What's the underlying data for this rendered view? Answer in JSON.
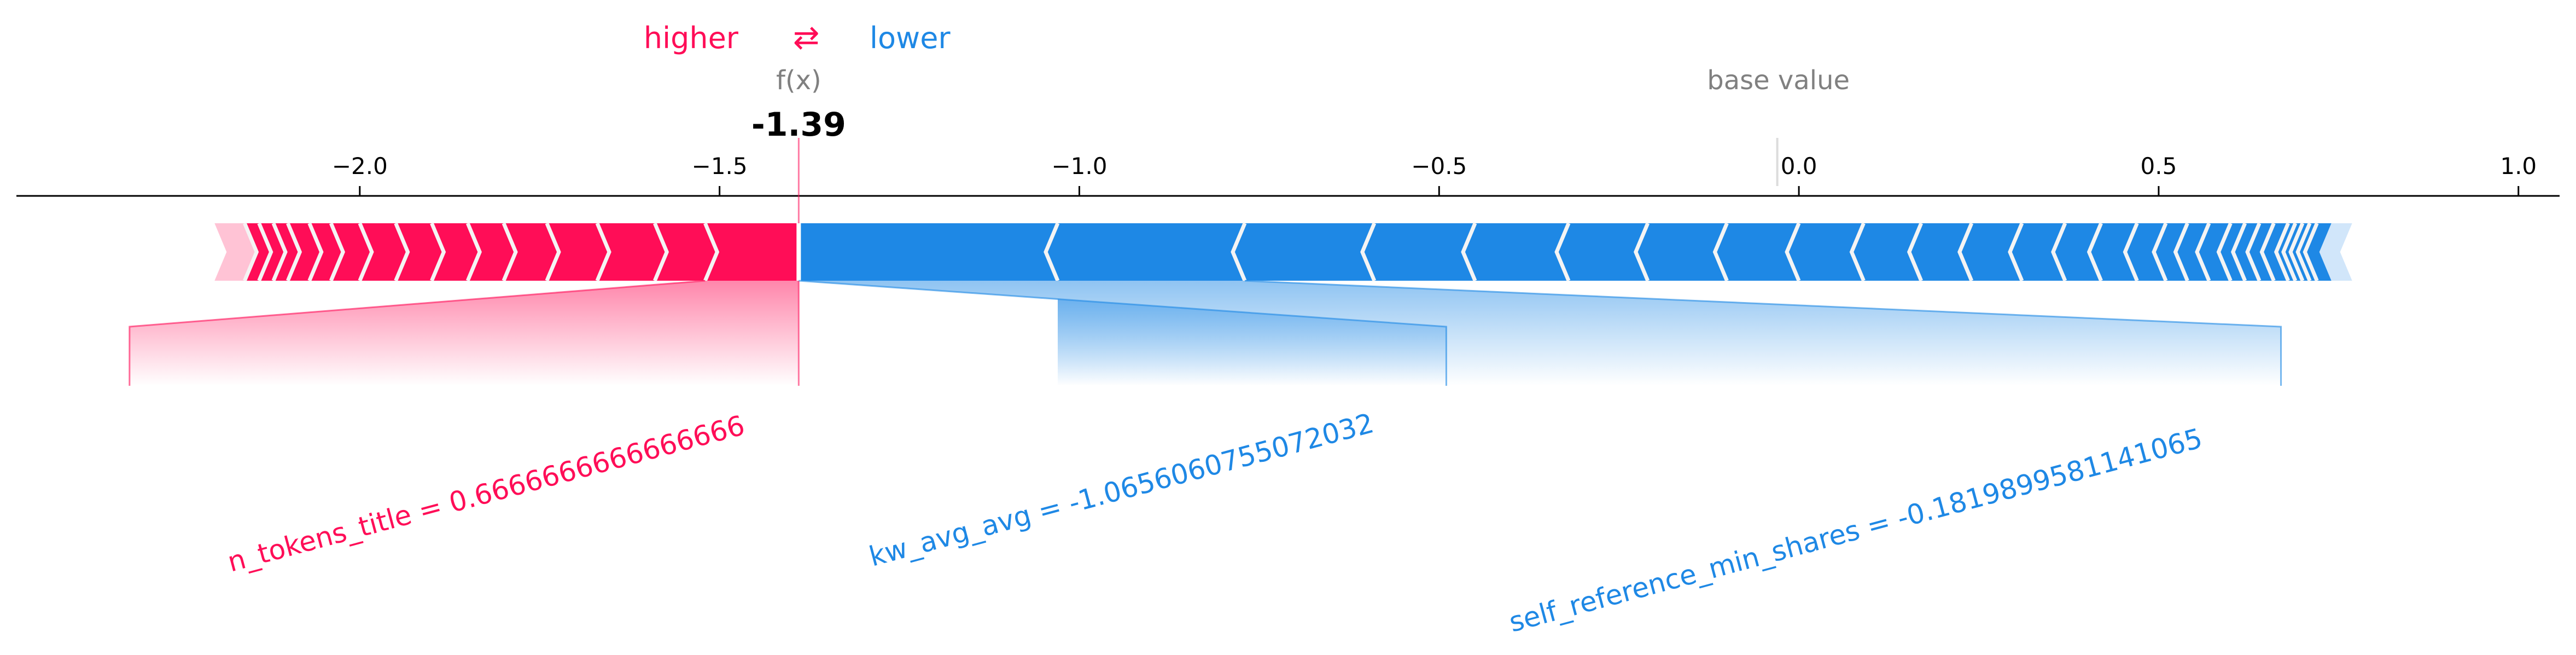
{
  "chart_data": {
    "type": "force",
    "title": "",
    "legend": {
      "higher_label": "higher",
      "arrow_symbol": "⇄",
      "lower_label": "lower",
      "placement": "top-center"
    },
    "output_label": "f(x)",
    "output_value_text": "-1.39",
    "output_value": -1.39,
    "base_value_label": "base value",
    "base_value": -0.03,
    "xlim": [
      -2.5,
      1.08
    ],
    "ticks": [
      -2.0,
      -1.5,
      -1.0,
      -0.5,
      0.0,
      0.5,
      1.0
    ],
    "tick_labels": [
      "−2.0",
      "−1.5",
      "−1.0",
      "−0.5",
      "0.0",
      "0.5",
      "1.0"
    ],
    "positive_range": [
      -2.16,
      -1.39
    ],
    "negative_range": [
      -1.39,
      0.74
    ],
    "positive_segment_boundaries": [
      -2.16,
      -2.14,
      -2.12,
      -2.1,
      -2.07,
      -2.04,
      -2.0,
      -1.95,
      -1.9,
      -1.85,
      -1.8,
      -1.74,
      -1.67,
      -1.59,
      -1.52
    ],
    "negative_segment_boundaries": [
      -1.03,
      -0.77,
      -0.59,
      -0.45,
      -0.32,
      -0.21,
      -0.1,
      0.0,
      0.09,
      0.17,
      0.24,
      0.31,
      0.37,
      0.42,
      0.47,
      0.51,
      0.54,
      0.57,
      0.6,
      0.62,
      0.64,
      0.66,
      0.68,
      0.69,
      0.7,
      0.71,
      0.72
    ],
    "features": [
      {
        "label": "n_tokens_title = 0.6666666666666666",
        "effect": "higher",
        "segment": [
          -1.52,
          -1.39
        ],
        "label_anchor": -2.32
      },
      {
        "label": "kw_avg_avg = -1.0656060755072032",
        "effect": "lower",
        "segment": [
          -1.39,
          -1.03
        ],
        "label_anchor": -0.49
      },
      {
        "label": "self_reference_min_shares = -0.1819899581141065",
        "effect": "lower",
        "segment": [
          -0.77,
          -1.03
        ],
        "label_anchor": 0.67
      }
    ],
    "colors": {
      "positive": "#ff0d57",
      "negative": "#1e88e5",
      "positive_light": "#ffc3d5",
      "negative_light": "#d1e6fa",
      "divider": "#f4f4f4",
      "muted_text": "#808080",
      "axis": "#000000"
    }
  }
}
